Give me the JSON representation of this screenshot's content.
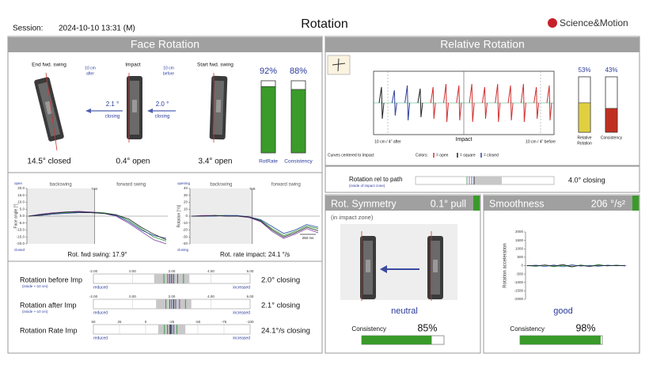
{
  "header": {
    "session_label": "Session:",
    "session": "2024-10-10 13:31 (M)",
    "title": "Rotation",
    "logo": "Science&Motion"
  },
  "face_rotation": {
    "title": "Face Rotation",
    "positions": [
      {
        "label": "End fwd. swing",
        "value": "14.5° closed"
      },
      {
        "label": "Impact",
        "value": "0.4° open"
      },
      {
        "label": "Start fwd. swing",
        "value": "3.4° open"
      }
    ],
    "after_label": [
      "10 cm",
      "after"
    ],
    "before_label": [
      "10 cm",
      "before"
    ],
    "changes": [
      {
        "value": "2.1 °",
        "label": "closing"
      },
      {
        "value": "2.0 °",
        "label": "closing"
      }
    ],
    "bars": [
      {
        "name": "RotRate",
        "value": 92,
        "label": "92%"
      },
      {
        "name": "Consistency",
        "value": 88,
        "label": "88%"
      }
    ],
    "charts": [
      {
        "type": "line",
        "top_label": "open",
        "bottom_label": "closed",
        "phases": [
          "backswing",
          "forward swing"
        ],
        "marker": "ToB",
        "ylabel": "Face angle [°]",
        "caption": "Rot. fwd swing: 17.9°",
        "ylim": [
          -20,
          20
        ],
        "yticks": [
          {
            "value": 20,
            "label": "20.0"
          },
          {
            "value": 15,
            "label": "15.0"
          },
          {
            "value": 10,
            "label": "10.0"
          },
          {
            "value": 5,
            "label": "5.0"
          },
          {
            "value": 0,
            "label": "0.0"
          },
          {
            "value": -5,
            "label": "-5.0"
          },
          {
            "value": -10,
            "label": "-10.0"
          },
          {
            "value": -15,
            "label": "-15.0"
          },
          {
            "value": -20,
            "label": "-20.0"
          }
        ],
        "series": [
          {
            "color": "#2a9a3a",
            "values": [
              0,
              1,
              2,
              2.5,
              3,
              3,
              2.5,
              1,
              -3,
              -9,
              -15,
              -18
            ]
          },
          {
            "color": "#7a3a9a",
            "values": [
              0,
              1.5,
              2.5,
              3,
              3.5,
              3,
              2,
              0,
              -5,
              -11,
              -17,
              -20
            ]
          },
          {
            "color": "#2a4aa0",
            "values": [
              0,
              0.5,
              1.5,
              2,
              2.5,
              2.5,
              2,
              0.5,
              -4,
              -10,
              -14,
              -16
            ]
          },
          {
            "color": "#222222",
            "values": [
              0,
              1,
              2,
              3,
              3,
              2.5,
              2,
              1,
              -2,
              -8,
              -13,
              -17
            ]
          }
        ]
      },
      {
        "type": "line",
        "top_label": "opening",
        "bottom_label": "closing",
        "phases": [
          "backswing",
          "forward swing"
        ],
        "marker": "ToB",
        "ylabel": "Rotation [°/s]",
        "scale_label": "250 ms",
        "caption": "Rot. rate impact: 24.1 °/s",
        "ylim": [
          -40,
          40
        ],
        "yticks": [
          40,
          30,
          20,
          10,
          0,
          -10,
          -20,
          -30,
          -40
        ],
        "series": [
          {
            "color": "#2a9a3a",
            "values": [
              0,
              0,
              1,
              1,
              0,
              -1,
              -6,
              -18,
              -28,
              -22,
              -14,
              -18
            ]
          },
          {
            "color": "#7a3a9a",
            "values": [
              0,
              1,
              1,
              0,
              0,
              -2,
              -8,
              -22,
              -32,
              -26,
              -18,
              -24
            ]
          },
          {
            "color": "#2a4aa0",
            "values": [
              0,
              0,
              0,
              1,
              1,
              -1,
              -5,
              -15,
              -25,
              -20,
              -12,
              -16
            ]
          },
          {
            "color": "#222222",
            "values": [
              0,
              0,
              1,
              0,
              0,
              -1,
              -7,
              -20,
              -30,
              -24,
              -16,
              -21
            ]
          }
        ]
      }
    ],
    "scale_labels": [
      "reduced",
      "increased"
    ],
    "rows": [
      {
        "name": "Rotation before Imp",
        "note": "(inside +-10 cm)",
        "value": "2.0° closing",
        "xlim": [
          -2,
          6
        ],
        "xticks": [
          {
            "value": -2,
            "label": "-2.00"
          },
          {
            "value": 0,
            "label": "0.00"
          },
          {
            "value": 2,
            "label": "2.00"
          },
          {
            "value": 4,
            "label": "4.00"
          },
          {
            "value": 6,
            "label": "6.00"
          }
        ],
        "range": [
          1.1,
          2.9
        ],
        "markers": [
          1.6,
          1.8,
          1.9,
          2.0,
          2.1,
          2.3,
          2.6
        ]
      },
      {
        "name": "Rotation after Imp",
        "note": "(inside +-10 cm)",
        "value": "2.1° closing",
        "xlim": [
          -2,
          6
        ],
        "xticks": [
          {
            "value": -2,
            "label": "-2.00"
          },
          {
            "value": 0,
            "label": "0.00"
          },
          {
            "value": 2,
            "label": "2.00"
          },
          {
            "value": 4,
            "label": "4.00"
          },
          {
            "value": 6,
            "label": "6.00"
          }
        ],
        "range": [
          1.2,
          3.0
        ],
        "markers": [
          1.7,
          1.9,
          2.0,
          2.1,
          2.2,
          2.4,
          2.7
        ]
      },
      {
        "name": "Rotation Rate Imp",
        "note": null,
        "value": "24.1°/s closing",
        "xlim": [
          50,
          -100
        ],
        "xticks": [
          50,
          25,
          0,
          -25,
          -50,
          -75,
          -100
        ],
        "range": [
          -12,
          -38
        ],
        "markers": [
          -18,
          -21,
          -23,
          -24,
          -25,
          -27,
          -30
        ]
      }
    ]
  },
  "relative_rotation": {
    "title": "Relative Rotation",
    "axis_labels": [
      "10 cm / 4\" after",
      "Impact",
      "10 cm / 4\" before"
    ],
    "bars": [
      {
        "name": [
          "Relative",
          "Rotation"
        ],
        "value": 53,
        "label": "53%",
        "color": "#e0d040"
      },
      {
        "name": [
          "Consistency"
        ],
        "value": 43,
        "label": "43%",
        "color": "#c03020"
      }
    ],
    "note": "Curves centered to Impact",
    "colors_label": "Colors:",
    "legend": [
      {
        "name": "= open",
        "color": "#d03030"
      },
      {
        "name": "= square",
        "color": "#222222"
      },
      {
        "name": "= closed",
        "color": "#3040a0"
      }
    ],
    "spikes": [
      {
        "color": "#222222",
        "value": 0.5
      },
      {
        "color": "#3040a0",
        "value": 0.4
      },
      {
        "color": "#3040a0",
        "value": 0.55
      },
      {
        "color": "#222222",
        "value": 0.45
      },
      {
        "color": "#d03030",
        "value": 0.5
      },
      {
        "color": "#d03030",
        "value": 0.6
      },
      {
        "color": "#d03030",
        "value": 0.55
      },
      {
        "color": "#d03030",
        "value": 0.6
      },
      {
        "color": "#d03030",
        "value": 0.5
      },
      {
        "color": "#d03030",
        "value": 0.6
      },
      {
        "color": "#d03030",
        "value": 0.55
      },
      {
        "color": "#d03030",
        "value": 0.6
      },
      {
        "color": "#d03030",
        "value": 0.5
      },
      {
        "color": "#d03030",
        "value": 0.55
      }
    ],
    "path_label": "Rotation rel to path",
    "path_note": "(inside of impact zone)",
    "path_value": "4.0° closing"
  },
  "symmetry": {
    "title": "Rot. Symmetry",
    "value": "0.1° pull",
    "note": "(in impact zone)",
    "verdict": "neutral",
    "consistency_label": "Consistency",
    "consistency": {
      "value": 85,
      "label": "85%"
    }
  },
  "smoothness": {
    "title": "Smoothness",
    "value": "206 °/s²",
    "ylabel": "Rotation acceleration",
    "verdict": "good",
    "consistency_label": "Consistency",
    "consistency": {
      "value": 98,
      "label": "98%"
    },
    "ylim": [
      -2000,
      2000
    ],
    "yticks": [
      2000,
      1500,
      1000,
      500,
      0,
      -500,
      -1000,
      -1500,
      -2000
    ],
    "series": [
      {
        "color": "#2a9a3a",
        "values": [
          0,
          -40,
          30,
          -60,
          20,
          -80,
          40,
          -30,
          60,
          -20,
          30,
          0
        ]
      },
      {
        "color": "#2a4aa0",
        "values": [
          -20,
          30,
          -50,
          40,
          -70,
          50,
          -30,
          20,
          -40,
          30,
          -10,
          20
        ]
      },
      {
        "color": "#222222",
        "values": [
          10,
          -20,
          40,
          -30,
          60,
          -60,
          20,
          -50,
          30,
          -10,
          20,
          -20
        ]
      }
    ]
  }
}
